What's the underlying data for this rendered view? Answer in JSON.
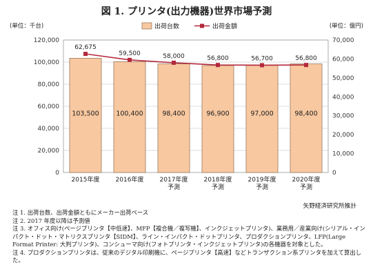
{
  "title": "図 1. プリンタ(出力機器)世界市場予測",
  "chart_data": {
    "type": "bar+line",
    "categories": [
      "2015年度",
      "2016年度",
      "2017年度\n予測",
      "2018年度\n予測",
      "2019年度\n予測",
      "2020年度\n予測"
    ],
    "series": [
      {
        "name": "出荷台数",
        "type": "bar",
        "axis": "left",
        "values": [
          103500,
          100400,
          98400,
          96900,
          97000,
          98400
        ],
        "labels": [
          "103,500",
          "100,400",
          "98,400",
          "96,900",
          "97,000",
          "98,400"
        ]
      },
      {
        "name": "出荷金額",
        "type": "line",
        "axis": "right",
        "values": [
          62675,
          59500,
          58000,
          56800,
          56700,
          56800
        ],
        "labels": [
          "62,675",
          "59,500",
          "58,000",
          "56,800",
          "56,700",
          "56,800"
        ]
      }
    ],
    "left_axis": {
      "unit_label": "(単位：千台)",
      "min": 0,
      "max": 120000,
      "step": 20000,
      "ticks": [
        "0",
        "20,000",
        "40,000",
        "60,000",
        "80,000",
        "100,000",
        "120,000"
      ]
    },
    "right_axis": {
      "unit_label": "(単位：億円)",
      "min": 0,
      "max": 70000,
      "step": 10000,
      "ticks": [
        "0",
        "10,000",
        "20,000",
        "30,000",
        "40,000",
        "50,000",
        "60,000",
        "70,000"
      ]
    },
    "legend_position": "top",
    "grid": true,
    "colors": {
      "bar_fill": "#f8c8a0",
      "bar_stroke": "#8a6a50",
      "line": "#b3283c",
      "grid": "#d0d0d0"
    }
  },
  "source": "矢野経済研究所推計",
  "notes": [
    "注 1. 出荷台数、出荷金額ともにメーカー出荷ベース",
    "注 2. 2017 年度以降は予測値",
    "注 3. オフィス向け(ページプリンタ【中低速】、MFP【複合機／複写機】、インクジェットプリンタ)、業務用／産業向け(シリアル・インパクト・ドット・マトリクスプリンタ【SIDM】、ライン・インパクト・ドットプリンタ、プロダクションプリンタ、LFP(Large Format Printer: 大判プリンタ)、コンシューマ向け(フォトプリンタ・インクジェットプリンタ)の各機器を対象とした。",
    "注 4. プロダクションプリンタは、従来のデジタル印刷機に、ページプリンタ【高速】などトランザクション系プリンタを加えて算出した。"
  ]
}
